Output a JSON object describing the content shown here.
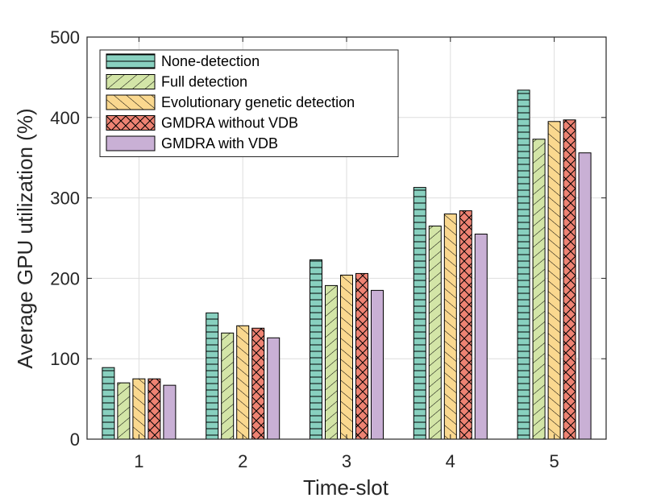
{
  "chart_data": {
    "type": "bar",
    "title": "",
    "xlabel": "Time-slot",
    "ylabel": "Average GPU utilization (%)",
    "categories": [
      "1",
      "2",
      "3",
      "4",
      "5"
    ],
    "ylim": [
      0,
      500
    ],
    "yticks": [
      0,
      100,
      200,
      300,
      400,
      500
    ],
    "grid": true,
    "legend_position": "top-left",
    "series": [
      {
        "name": "None-detection",
        "color": "#88d0bf",
        "pattern": "horizontal-lines",
        "values": [
          89,
          157,
          223,
          313,
          434
        ]
      },
      {
        "name": "Full detection",
        "color": "#d3e5a7",
        "pattern": "back-diagonal",
        "values": [
          70,
          132,
          191,
          265,
          373
        ]
      },
      {
        "name": "Evolutionary genetic detection",
        "color": "#fad88f",
        "pattern": "forward-diagonal",
        "values": [
          75,
          141,
          204,
          280,
          395
        ]
      },
      {
        "name": "GMDRA without VDB",
        "color": "#ee8373",
        "pattern": "cross-hatch",
        "values": [
          75,
          138,
          206,
          284,
          397
        ]
      },
      {
        "name": "GMDRA with VDB",
        "color": "#c9b0d5",
        "pattern": "none",
        "values": [
          67,
          126,
          185,
          255,
          356
        ]
      }
    ]
  }
}
